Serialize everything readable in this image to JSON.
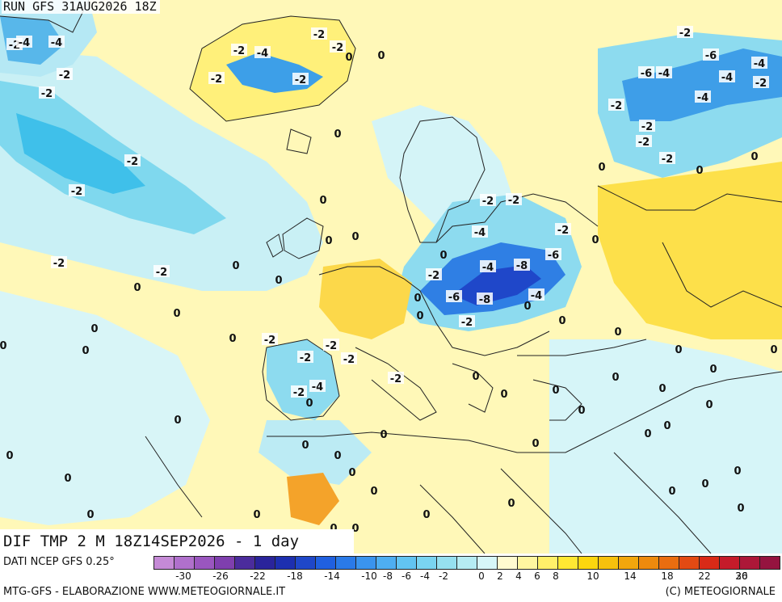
{
  "header": {
    "run_label": "RUN GFS 31AUG2026 18Z"
  },
  "title": {
    "text": "DIF TMP 2 M 18Z14SEP2026 - 1 day"
  },
  "footer": {
    "source_label": "DATI NCEP GFS 0.25°",
    "credit_left": "MTG-GFS - ELABORAZIONE WWW.METEOGIORNALE.IT",
    "credit_right": "(C) METEOGIORNALE"
  },
  "legend": {
    "ticks": [
      "-30",
      "-26",
      "-22",
      "-18",
      "-14",
      "-10",
      "-8",
      "-6",
      "-4",
      "-2",
      "0",
      "2",
      "4",
      "6",
      "8",
      "10",
      "14",
      "18",
      "22",
      "26",
      "30"
    ],
    "colors": [
      "#c58ad6",
      "#b070cc",
      "#9a56bf",
      "#7f3fae",
      "#4b2c9c",
      "#2a249b",
      "#1d2fb0",
      "#1f47c9",
      "#2060e0",
      "#2a7ae8",
      "#3a94ee",
      "#4eaef1",
      "#62c4f2",
      "#7ad4f1",
      "#96e0f0",
      "#b6ecf3",
      "#d6f6f8",
      "#fffbd0",
      "#fff6a0",
      "#fff06a",
      "#ffe833",
      "#fcd60e",
      "#f7c10c",
      "#f2a60c",
      "#ee8a0d",
      "#ea6d10",
      "#e34a13",
      "#d92a17",
      "#c51b2a",
      "#ad1738",
      "#95133f"
    ]
  },
  "map_labels": [
    {
      "text": "-2"
    },
    {
      "text": "-4"
    },
    {
      "text": "-4"
    },
    {
      "text": "-2"
    },
    {
      "text": "-2"
    },
    {
      "text": "-2"
    },
    {
      "text": "-2"
    },
    {
      "text": "-2"
    },
    {
      "text": "-4"
    },
    {
      "text": "-2"
    },
    {
      "text": "-2"
    },
    {
      "text": "0"
    },
    {
      "text": "0"
    },
    {
      "text": "-2"
    },
    {
      "text": "0"
    },
    {
      "text": "-2"
    },
    {
      "text": "-2"
    },
    {
      "text": "-2"
    },
    {
      "text": "-6"
    },
    {
      "text": "-4"
    },
    {
      "text": "-6"
    },
    {
      "text": "-4"
    },
    {
      "text": "-4"
    },
    {
      "text": "-2"
    },
    {
      "text": "-2"
    },
    {
      "text": "-2"
    },
    {
      "text": "-4"
    },
    {
      "text": "-2"
    },
    {
      "text": "-2"
    },
    {
      "text": "-2"
    },
    {
      "text": "0"
    },
    {
      "text": "0"
    },
    {
      "text": "0"
    },
    {
      "text": "-2"
    },
    {
      "text": "-2"
    },
    {
      "text": "-2"
    },
    {
      "text": "-4"
    },
    {
      "text": "0"
    },
    {
      "text": "-8"
    },
    {
      "text": "-6"
    },
    {
      "text": "0"
    },
    {
      "text": "-2"
    },
    {
      "text": "-4"
    },
    {
      "text": "-6"
    },
    {
      "text": "-8"
    },
    {
      "text": "-4"
    },
    {
      "text": "0"
    },
    {
      "text": "0"
    },
    {
      "text": "-2"
    },
    {
      "text": "0"
    },
    {
      "text": "0"
    },
    {
      "text": "0"
    },
    {
      "text": "0"
    },
    {
      "text": "0"
    },
    {
      "text": "0"
    },
    {
      "text": "-2"
    },
    {
      "text": "-2"
    },
    {
      "text": "-2"
    },
    {
      "text": "-4"
    },
    {
      "text": "0"
    },
    {
      "text": "0"
    },
    {
      "text": "0"
    },
    {
      "text": "0"
    },
    {
      "text": "0"
    },
    {
      "text": "0"
    },
    {
      "text": "0"
    },
    {
      "text": "0"
    },
    {
      "text": "0"
    },
    {
      "text": "0"
    },
    {
      "text": "0"
    },
    {
      "text": "0"
    },
    {
      "text": "0"
    },
    {
      "text": "0"
    },
    {
      "text": "-2"
    },
    {
      "text": "-2"
    },
    {
      "text": "-2"
    },
    {
      "text": "0"
    },
    {
      "text": "0"
    },
    {
      "text": "0"
    },
    {
      "text": "0"
    },
    {
      "text": "0"
    },
    {
      "text": "0"
    },
    {
      "text": "0"
    },
    {
      "text": "0"
    },
    {
      "text": "0"
    },
    {
      "text": "0"
    },
    {
      "text": "0"
    },
    {
      "text": "0"
    },
    {
      "text": "0"
    },
    {
      "text": "0"
    },
    {
      "text": "0"
    },
    {
      "text": "0"
    },
    {
      "text": "0"
    },
    {
      "text": "0"
    },
    {
      "text": "0"
    },
    {
      "text": "0"
    },
    {
      "text": "0"
    },
    {
      "text": "0"
    },
    {
      "text": "0"
    },
    {
      "text": "0"
    },
    {
      "text": "0"
    },
    {
      "text": "0"
    }
  ]
}
